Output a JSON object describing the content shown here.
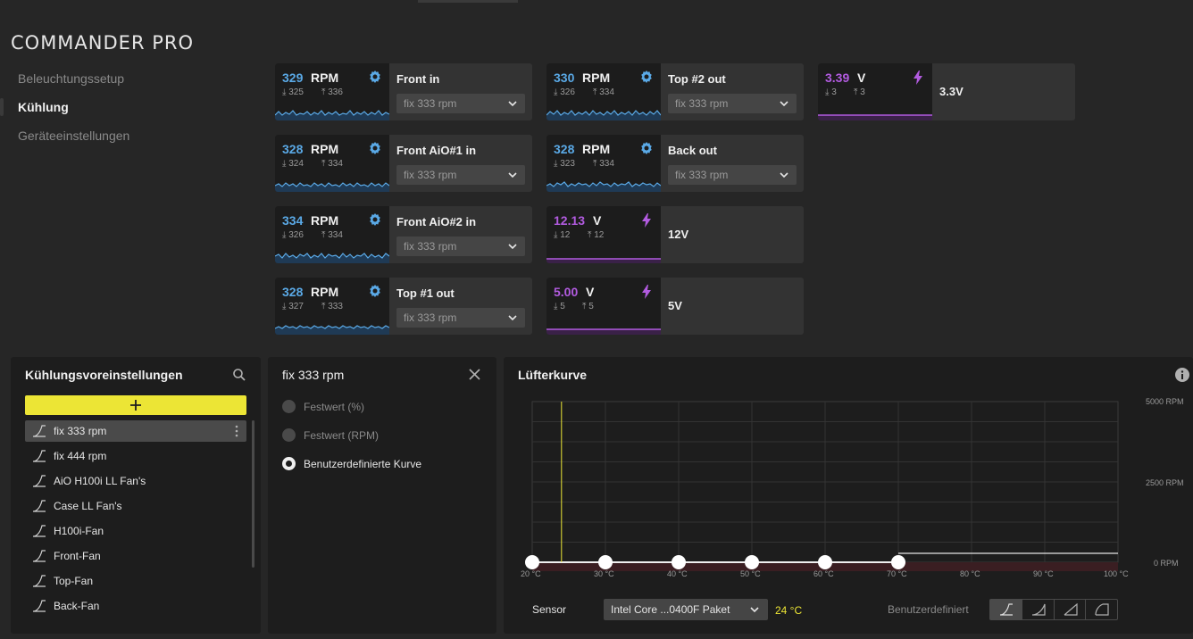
{
  "app": {
    "title": "COMMANDER PRO"
  },
  "nav": {
    "items": [
      "Beleuchtungssetup",
      "Kühlung",
      "Geräteeinstellungen"
    ],
    "active": 1
  },
  "tiles": [
    {
      "kind": "fan",
      "value": "329",
      "unit": "RPM",
      "min": "325",
      "max": "336",
      "name": "Front in",
      "preset": "fix 333 rpm"
    },
    {
      "kind": "fan",
      "value": "328",
      "unit": "RPM",
      "min": "324",
      "max": "334",
      "name": "Front AiO#1 in",
      "preset": "fix 333 rpm"
    },
    {
      "kind": "fan",
      "value": "334",
      "unit": "RPM",
      "min": "326",
      "max": "334",
      "name": "Front AiO#2 in",
      "preset": "fix 333 rpm"
    },
    {
      "kind": "fan",
      "value": "328",
      "unit": "RPM",
      "min": "327",
      "max": "333",
      "name": "Top #1 out",
      "preset": "fix 333 rpm"
    },
    {
      "kind": "fan",
      "value": "330",
      "unit": "RPM",
      "min": "326",
      "max": "334",
      "name": "Top #2 out",
      "preset": "fix 333 rpm"
    },
    {
      "kind": "fan",
      "value": "328",
      "unit": "RPM",
      "min": "323",
      "max": "334",
      "name": "Back out",
      "preset": "fix 333 rpm"
    },
    {
      "kind": "volt",
      "value": "12.13",
      "unit": "V",
      "min": "12",
      "max": "12",
      "name": "12V"
    },
    {
      "kind": "volt",
      "value": "5.00",
      "unit": "V",
      "min": "5",
      "max": "5",
      "name": "5V"
    },
    {
      "kind": "volt",
      "value": "3.39",
      "unit": "V",
      "min": "3",
      "max": "3",
      "name": "3.3V"
    }
  ],
  "presets_panel": {
    "title": "Kühlungsvoreinstellungen",
    "add_icon": "plus-icon",
    "items": [
      "fix 333 rpm",
      "fix 444 rpm",
      "AiO H100i LL Fan's",
      "Case LL Fan's",
      "H100i-Fan",
      "Front-Fan",
      "Top-Fan",
      "Back-Fan"
    ],
    "selected": 0
  },
  "editor": {
    "title": "fix 333 rpm",
    "options": [
      "Festwert (%)",
      "Festwert (RPM)",
      "Benutzerdefinierte Kurve"
    ],
    "selected": 2
  },
  "curve": {
    "title": "Lüfterkurve",
    "y_labels": [
      "5000 RPM",
      "2500 RPM",
      "0 RPM"
    ],
    "x_labels": [
      "20 °C",
      "30 °C",
      "40 °C",
      "50 °C",
      "60 °C",
      "70 °C",
      "80 °C",
      "90 °C",
      "100 °C"
    ],
    "sensor_label": "Sensor",
    "sensor_value": "Intel Core ...0400F Paket",
    "current_temp": "24 °C",
    "current_temp_value": 24,
    "mode_label": "Benutzerdefiniert",
    "accent": "#ece535"
  },
  "chart_data": {
    "type": "line",
    "title": "Lüfterkurve",
    "xlabel": "",
    "ylabel": "",
    "xlim": [
      20,
      100
    ],
    "ylim": [
      0,
      5000
    ],
    "grid": true,
    "series": [
      {
        "x": [
          20,
          30,
          40,
          50,
          60,
          70
        ],
        "y": [
          0,
          0,
          0,
          0,
          0,
          0
        ]
      }
    ],
    "marker_x": 24
  }
}
